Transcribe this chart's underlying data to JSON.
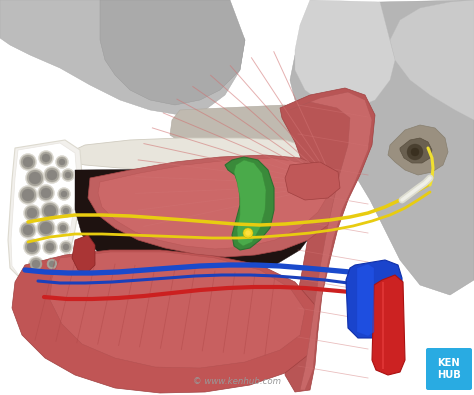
{
  "bg_color": "#ffffff",
  "kenhub_logo_color": "#29abe2",
  "kenhub_text": "KEN\nHUB",
  "watermark": "© www.kenhub.com",
  "fig_width": 4.74,
  "fig_height": 3.95,
  "dpi": 100,
  "skull_gray1": "#b0b0b0",
  "skull_gray2": "#989898",
  "skull_gray3": "#c8c8c8",
  "skull_gray4": "#d8d8d8",
  "skull_dark": "#707070",
  "skull_darker": "#505050",
  "white_bone": "#f0f0f0",
  "white_bone2": "#e8e8e8",
  "spongy_dark": "#c0bfb8",
  "spongy_hole": "#888880",
  "muscle_red1": "#c86060",
  "muscle_red2": "#b85050",
  "muscle_red3": "#d07070",
  "muscle_red4": "#a04545",
  "dark_cavity": "#2a1a18",
  "green_muscle": "#3a8a3a",
  "yellow_nerve": "#e8cc10",
  "yellow_nerve2": "#f0d820",
  "blue_vessel": "#1a4acc",
  "blue_vessel2": "#2255dd",
  "red_artery": "#cc2020",
  "white_nerve": "#e8e8e0",
  "ear_dark": "#5a5040",
  "ear_medium": "#8a7860"
}
